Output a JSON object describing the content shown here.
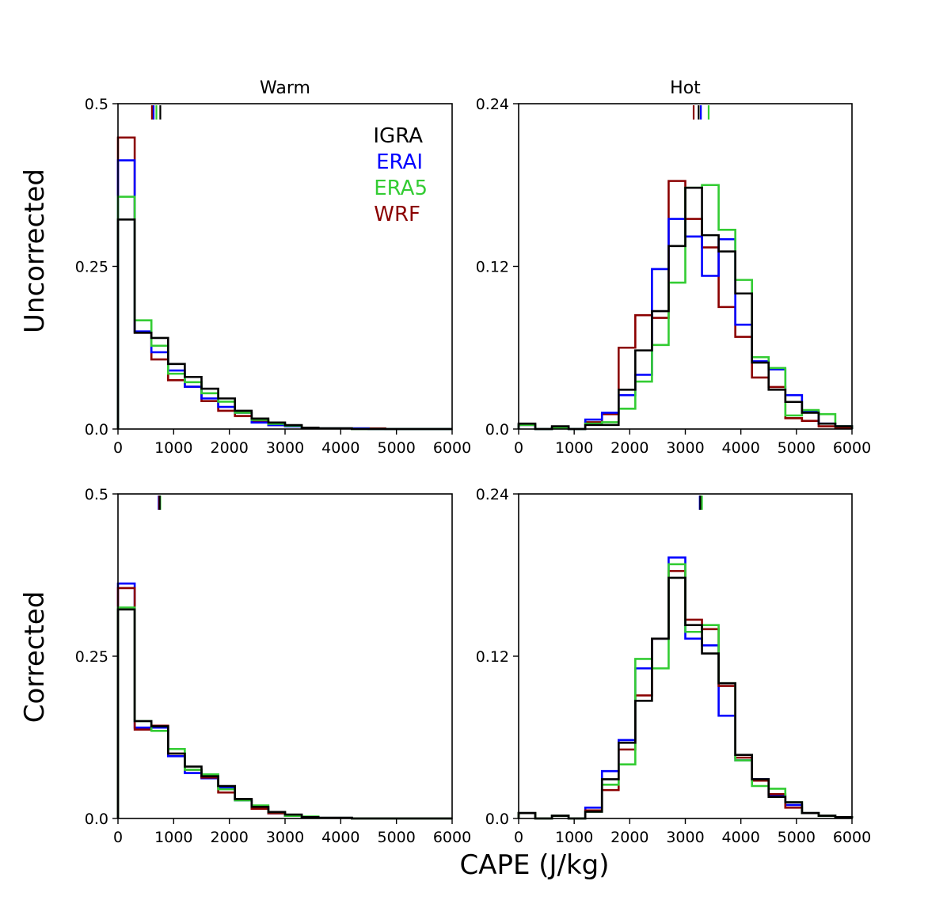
{
  "figure": {
    "xlabel": "CAPE (J/kg)",
    "row_labels": [
      "Uncorrected",
      "Corrected"
    ],
    "legend": [
      {
        "name": "IGRA",
        "color": "#000000"
      },
      {
        "name": "ERAI",
        "color": "#0000ff"
      },
      {
        "name": "ERA5",
        "color": "#33cc33"
      },
      {
        "name": "WRF",
        "color": "#8b0000"
      }
    ]
  },
  "chart_data": [
    {
      "type": "histogram-step",
      "panel": "uncorrected-warm",
      "title": "Warm",
      "ylabel": "Uncorrected",
      "xlabel": "",
      "bin_width": 300,
      "xlim": [
        0,
        6000
      ],
      "ylim": [
        0,
        0.5
      ],
      "xticks": [
        0,
        1000,
        2000,
        3000,
        4000,
        5000,
        6000
      ],
      "yticks": [
        0,
        0.25,
        0.5
      ],
      "ytick_labels": [
        "0.0",
        "0.25",
        "0.5"
      ],
      "series": [
        {
          "name": "WRF",
          "color": "#8b0000",
          "mean": 610,
          "values": [
            0.448,
            0.148,
            0.107,
            0.075,
            0.065,
            0.043,
            0.028,
            0.02,
            0.012,
            0.006,
            0.004,
            0.002,
            0.001,
            0.001,
            0.001,
            0.001,
            0,
            0,
            0,
            0
          ]
        },
        {
          "name": "ERAI",
          "color": "#0000ff",
          "mean": 640,
          "values": [
            0.413,
            0.15,
            0.118,
            0.09,
            0.065,
            0.047,
            0.034,
            0.025,
            0.01,
            0.006,
            0.004,
            0.002,
            0.001,
            0.001,
            0.001,
            0,
            0,
            0,
            0,
            0
          ]
        },
        {
          "name": "ERA5",
          "color": "#33cc33",
          "mean": 690,
          "values": [
            0.357,
            0.167,
            0.128,
            0.085,
            0.072,
            0.055,
            0.042,
            0.025,
            0.014,
            0.008,
            0.005,
            0.002,
            0.001,
            0.001,
            0,
            0,
            0,
            0,
            0,
            0
          ]
        },
        {
          "name": "IGRA",
          "color": "#000000",
          "mean": 760,
          "values": [
            0.322,
            0.148,
            0.14,
            0.1,
            0.08,
            0.062,
            0.047,
            0.028,
            0.016,
            0.01,
            0.006,
            0.002,
            0.001,
            0.001,
            0,
            0,
            0,
            0,
            0,
            0
          ]
        }
      ]
    },
    {
      "type": "histogram-step",
      "panel": "uncorrected-hot",
      "title": "Hot",
      "ylabel": "",
      "xlabel": "",
      "bin_width": 300,
      "xlim": [
        0,
        6000
      ],
      "ylim": [
        0,
        0.24
      ],
      "xticks": [
        0,
        1000,
        2000,
        3000,
        4000,
        5000,
        6000
      ],
      "yticks": [
        0,
        0.12,
        0.24
      ],
      "ytick_labels": [
        "0.0",
        "0.12",
        "0.24"
      ],
      "series": [
        {
          "name": "WRF",
          "color": "#8b0000",
          "mean": 3150,
          "values": [
            0.003,
            0,
            0.001,
            0,
            0.005,
            0.011,
            0.06,
            0.084,
            0.082,
            0.183,
            0.155,
            0.134,
            0.09,
            0.068,
            0.038,
            0.031,
            0.008,
            0.006,
            0.002,
            0.001
          ]
        },
        {
          "name": "ERAI",
          "color": "#0000ff",
          "mean": 3280,
          "values": [
            0.003,
            0,
            0.001,
            0,
            0.007,
            0.012,
            0.025,
            0.04,
            0.118,
            0.155,
            0.142,
            0.113,
            0.14,
            0.077,
            0.05,
            0.044,
            0.025,
            0.013,
            0.004,
            0.002
          ]
        },
        {
          "name": "ERA5",
          "color": "#33cc33",
          "mean": 3420,
          "values": [
            0.003,
            0,
            0.001,
            0,
            0.004,
            0.005,
            0.015,
            0.035,
            0.062,
            0.108,
            0.178,
            0.18,
            0.147,
            0.11,
            0.053,
            0.045,
            0.01,
            0.014,
            0.011,
            0.002
          ]
        },
        {
          "name": "IGRA",
          "color": "#000000",
          "mean": 3240,
          "values": [
            0.004,
            0,
            0.002,
            0,
            0.003,
            0.003,
            0.029,
            0.058,
            0.087,
            0.135,
            0.178,
            0.143,
            0.131,
            0.1,
            0.049,
            0.029,
            0.02,
            0.012,
            0.004,
            0.002
          ]
        }
      ]
    },
    {
      "type": "histogram-step",
      "panel": "corrected-warm",
      "title": "",
      "ylabel": "Corrected",
      "xlabel": "",
      "bin_width": 300,
      "xlim": [
        0,
        6000
      ],
      "ylim": [
        0,
        0.5
      ],
      "xticks": [
        0,
        1000,
        2000,
        3000,
        4000,
        5000,
        6000
      ],
      "yticks": [
        0,
        0.25,
        0.5
      ],
      "ytick_labels": [
        "0.0",
        "0.25",
        "0.5"
      ],
      "series": [
        {
          "name": "ERAI",
          "color": "#0000ff",
          "mean": 730,
          "values": [
            0.362,
            0.14,
            0.14,
            0.096,
            0.07,
            0.062,
            0.048,
            0.028,
            0.017,
            0.008,
            0.005,
            0.002,
            0.001,
            0.001,
            0,
            0,
            0,
            0,
            0,
            0
          ]
        },
        {
          "name": "WRF",
          "color": "#8b0000",
          "mean": 740,
          "values": [
            0.355,
            0.137,
            0.143,
            0.1,
            0.075,
            0.063,
            0.04,
            0.03,
            0.015,
            0.008,
            0.004,
            0.002,
            0.001,
            0.001,
            0,
            0,
            0,
            0,
            0,
            0
          ]
        },
        {
          "name": "ERA5",
          "color": "#33cc33",
          "mean": 760,
          "values": [
            0.325,
            0.15,
            0.135,
            0.107,
            0.075,
            0.068,
            0.045,
            0.028,
            0.02,
            0.01,
            0.004,
            0.003,
            0.001,
            0.001,
            0,
            0,
            0,
            0,
            0,
            0
          ]
        },
        {
          "name": "IGRA",
          "color": "#000000",
          "mean": 750,
          "values": [
            0.322,
            0.15,
            0.142,
            0.1,
            0.08,
            0.065,
            0.05,
            0.03,
            0.018,
            0.01,
            0.006,
            0.002,
            0.001,
            0.001,
            0,
            0,
            0,
            0,
            0,
            0
          ]
        }
      ]
    },
    {
      "type": "histogram-step",
      "panel": "corrected-hot",
      "title": "",
      "ylabel": "",
      "xlabel": "",
      "bin_width": 300,
      "xlim": [
        0,
        6000
      ],
      "ylim": [
        0,
        0.24
      ],
      "xticks": [
        0,
        1000,
        2000,
        3000,
        4000,
        5000,
        6000
      ],
      "yticks": [
        0,
        0.12,
        0.24
      ],
      "ytick_labels": [
        "0.0",
        "0.12",
        "0.24"
      ],
      "series": [
        {
          "name": "ERAI",
          "color": "#0000ff",
          "mean": 3260,
          "values": [
            0.004,
            0,
            0.002,
            0,
            0.008,
            0.035,
            0.058,
            0.111,
            0.133,
            0.193,
            0.133,
            0.128,
            0.076,
            0.043,
            0.029,
            0.017,
            0.01,
            0.004,
            0.002,
            0.001
          ]
        },
        {
          "name": "WRF",
          "color": "#8b0000",
          "mean": 3280,
          "values": [
            0.004,
            0,
            0.002,
            0,
            0.006,
            0.021,
            0.051,
            0.091,
            0.133,
            0.183,
            0.147,
            0.14,
            0.098,
            0.045,
            0.028,
            0.018,
            0.008,
            0.004,
            0.002,
            0.001
          ]
        },
        {
          "name": "ERA5",
          "color": "#33cc33",
          "mean": 3300,
          "values": [
            0.004,
            0,
            0.002,
            0,
            0.005,
            0.025,
            0.04,
            0.118,
            0.111,
            0.188,
            0.138,
            0.143,
            0.1,
            0.043,
            0.024,
            0.022,
            0.012,
            0.004,
            0.002,
            0.001
          ]
        },
        {
          "name": "IGRA",
          "color": "#000000",
          "mean": 3270,
          "values": [
            0.004,
            0,
            0.002,
            0,
            0.005,
            0.029,
            0.056,
            0.087,
            0.133,
            0.178,
            0.143,
            0.122,
            0.1,
            0.047,
            0.029,
            0.016,
            0.012,
            0.004,
            0.002,
            0.001
          ]
        }
      ]
    }
  ]
}
